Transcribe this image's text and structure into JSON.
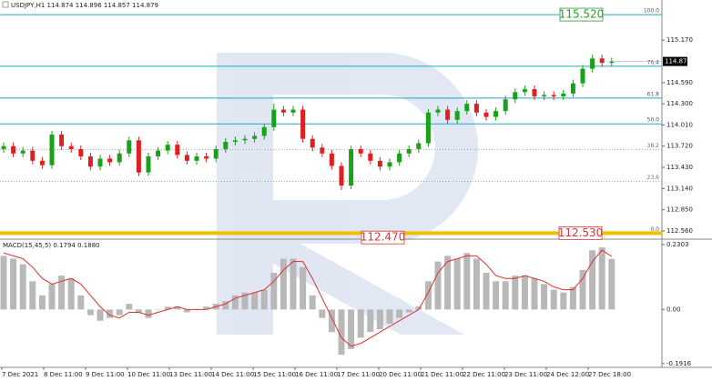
{
  "header": "USDJPY,H1 114.874 114.896 114.857 114.879",
  "time_labels": [
    "7 Dec 2021",
    "8 Dec 11:00",
    "9 Dec 11:00",
    "10 Dec 11:00",
    "13 Dec 11:00",
    "14 Dec 11:00",
    "15 Dec 11:00",
    "16 Dec 11:00",
    "17 Dec 11:00",
    "20 Dec 11:00",
    "21 Dec 11:00",
    "22 Dec 11:00",
    "23 Dec 11:00",
    "24 Dec 12:00",
    "27 Dec 18:00"
  ],
  "chart_data": [
    {
      "type": "candlestick",
      "up_color": "#1aa11a",
      "down_color": "#e02020",
      "ylim": [
        112.46,
        115.72
      ],
      "yticks": [
        {
          "value": 115.17,
          "label": "115.170"
        },
        {
          "value": 114.59,
          "label": "114.590"
        },
        {
          "value": 114.3,
          "label": "114.300"
        },
        {
          "value": 114.01,
          "label": "114.010"
        },
        {
          "value": 113.72,
          "label": "113.720"
        },
        {
          "value": 113.43,
          "label": "113.430"
        },
        {
          "value": 113.14,
          "label": "113.140"
        },
        {
          "value": 112.85,
          "label": "112.850"
        },
        {
          "value": 112.56,
          "label": "112.560"
        }
      ],
      "current_price": 114.879,
      "open": [
        113.68,
        113.72,
        113.62,
        113.66,
        113.52,
        113.46,
        113.88,
        113.72,
        113.68,
        113.58,
        113.44,
        113.55,
        113.5,
        113.62,
        113.8,
        113.36,
        113.58,
        113.66,
        113.74,
        113.6,
        113.52,
        113.58,
        113.55,
        113.68,
        113.78,
        113.8,
        113.82,
        113.86,
        113.98,
        114.22,
        114.18,
        114.22,
        113.82,
        113.7,
        113.62,
        113.45,
        113.18,
        113.68,
        113.62,
        113.52,
        113.44,
        113.5,
        113.62,
        113.68,
        113.76,
        114.18,
        114.22,
        114.08,
        114.2,
        114.3,
        114.18,
        114.12,
        114.2,
        114.36,
        114.46,
        114.5,
        114.4,
        114.42,
        114.4,
        114.44,
        114.58,
        114.78,
        114.92,
        114.86
      ],
      "high": [
        113.77,
        113.77,
        113.71,
        113.71,
        113.57,
        113.93,
        113.93,
        113.77,
        113.73,
        113.63,
        113.6,
        113.6,
        113.67,
        113.85,
        113.85,
        113.63,
        113.71,
        113.79,
        113.79,
        113.65,
        113.63,
        113.63,
        113.73,
        113.83,
        113.85,
        113.87,
        113.91,
        114.03,
        114.3,
        114.27,
        114.27,
        114.27,
        113.87,
        113.75,
        113.67,
        113.5,
        113.73,
        113.73,
        113.67,
        113.57,
        113.55,
        113.67,
        113.73,
        113.81,
        114.23,
        114.27,
        114.27,
        114.25,
        114.35,
        114.35,
        114.23,
        114.25,
        114.41,
        114.51,
        114.55,
        114.55,
        114.47,
        114.47,
        114.49,
        114.63,
        114.83,
        114.97,
        114.97,
        114.93
      ],
      "low": [
        113.63,
        113.57,
        113.57,
        113.47,
        113.41,
        113.41,
        113.67,
        113.63,
        113.53,
        113.39,
        113.39,
        113.45,
        113.45,
        113.57,
        113.31,
        113.31,
        113.53,
        113.61,
        113.55,
        113.47,
        113.47,
        113.5,
        113.5,
        113.63,
        113.73,
        113.75,
        113.77,
        113.81,
        113.93,
        114.13,
        114.13,
        113.77,
        113.65,
        113.57,
        113.4,
        113.12,
        113.13,
        113.57,
        113.47,
        113.39,
        113.39,
        113.45,
        113.57,
        113.63,
        113.71,
        114.13,
        114.03,
        114.03,
        114.15,
        114.13,
        114.07,
        114.07,
        114.15,
        114.31,
        114.41,
        114.35,
        114.35,
        114.35,
        114.35,
        114.39,
        114.53,
        114.73,
        114.81,
        114.81
      ],
      "close": [
        113.72,
        113.62,
        113.66,
        113.52,
        113.46,
        113.88,
        113.72,
        113.68,
        113.58,
        113.44,
        113.55,
        113.5,
        113.62,
        113.8,
        113.36,
        113.58,
        113.66,
        113.74,
        113.6,
        113.52,
        113.58,
        113.55,
        113.68,
        113.78,
        113.8,
        113.82,
        113.86,
        113.98,
        114.22,
        114.18,
        114.22,
        113.82,
        113.7,
        113.62,
        113.45,
        113.18,
        113.68,
        113.62,
        113.52,
        113.44,
        113.5,
        113.62,
        113.68,
        113.76,
        114.18,
        114.22,
        114.08,
        114.2,
        114.3,
        114.18,
        114.12,
        114.2,
        114.36,
        114.46,
        114.5,
        114.4,
        114.42,
        114.4,
        114.44,
        114.58,
        114.78,
        114.92,
        114.86,
        114.879
      ],
      "fib_levels": [
        {
          "value": 115.52,
          "label": "100.0",
          "color": "#1ba8c8",
          "dotted": false
        },
        {
          "value": 114.814,
          "label": "76.4",
          "color": "#1ba8c8",
          "dotted": false
        },
        {
          "value": 114.378,
          "label": "61.8",
          "color": "#1ba8c8",
          "dotted": false
        },
        {
          "value": 114.025,
          "label": "50.0",
          "color": "#1ba8c8",
          "dotted": false
        },
        {
          "value": 113.672,
          "label": "38.2",
          "color": "#6aa86a",
          "dotted": true
        },
        {
          "value": 113.236,
          "label": "23.6",
          "color": "#6aa86a",
          "dotted": true
        },
        {
          "value": 112.53,
          "label": "0.0",
          "color": "#f0c000",
          "dotted": false
        }
      ],
      "price_boxes": [
        {
          "value": 115.52,
          "label": "115.520",
          "color": "#2a9a2a"
        },
        {
          "value": 112.47,
          "label": "112.470",
          "color": "#e03030"
        },
        {
          "value": 112.53,
          "label": "112.530",
          "color": "#e03030"
        }
      ]
    },
    {
      "type": "macd",
      "title": "MACD(15,45,5) 0.1794 0.1880",
      "histogram_color": "#b8b8b8",
      "signal_color": "#e03030",
      "ylim": [
        -0.205,
        0.246
      ],
      "yticks": [
        0.2303,
        {
          "value": 0,
          "label": "0.00"
        },
        -0.1916
      ],
      "histogram": [
        0.19,
        0.18,
        0.16,
        0.1,
        0.05,
        0.09,
        0.12,
        0.11,
        0.05,
        -0.02,
        -0.04,
        -0.03,
        -0.02,
        0.02,
        -0.01,
        -0.03,
        0.0,
        0.01,
        0.01,
        -0.01,
        0.0,
        0.01,
        0.02,
        0.03,
        0.05,
        0.06,
        0.06,
        0.07,
        0.13,
        0.18,
        0.18,
        0.15,
        0.05,
        -0.03,
        -0.08,
        -0.16,
        -0.14,
        -0.1,
        -0.08,
        -0.07,
        -0.05,
        -0.03,
        -0.01,
        0.01,
        0.1,
        0.17,
        0.19,
        0.18,
        0.2,
        0.18,
        0.13,
        0.1,
        0.1,
        0.12,
        0.12,
        0.11,
        0.09,
        0.07,
        0.06,
        0.08,
        0.14,
        0.21,
        0.22,
        0.1794
      ],
      "signal": [
        0.2,
        0.19,
        0.18,
        0.15,
        0.11,
        0.09,
        0.1,
        0.11,
        0.09,
        0.05,
        0.01,
        -0.02,
        -0.03,
        -0.01,
        -0.01,
        -0.02,
        -0.01,
        0.0,
        0.01,
        0.0,
        0.0,
        0.0,
        0.01,
        0.02,
        0.04,
        0.05,
        0.06,
        0.07,
        0.1,
        0.14,
        0.17,
        0.17,
        0.11,
        0.04,
        -0.03,
        -0.1,
        -0.13,
        -0.12,
        -0.1,
        -0.08,
        -0.06,
        -0.04,
        -0.02,
        0.0,
        0.06,
        0.13,
        0.17,
        0.18,
        0.19,
        0.19,
        0.16,
        0.12,
        0.11,
        0.11,
        0.12,
        0.11,
        0.1,
        0.08,
        0.07,
        0.07,
        0.11,
        0.17,
        0.21,
        0.188
      ]
    }
  ]
}
